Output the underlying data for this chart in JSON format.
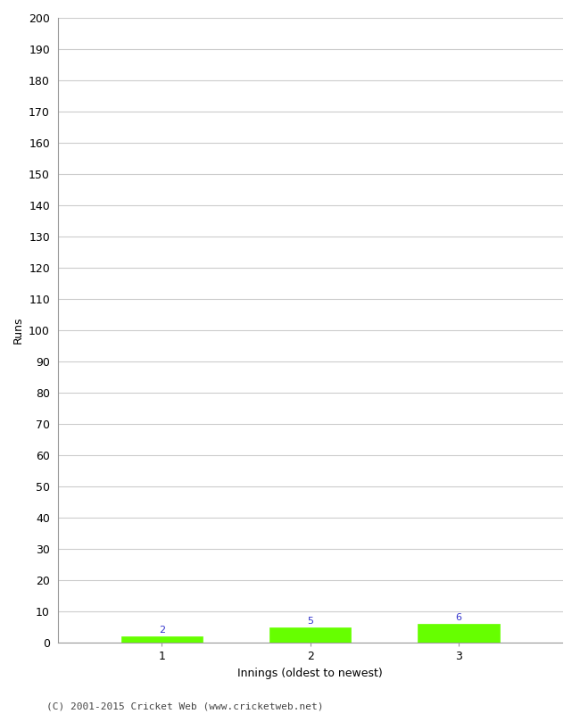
{
  "categories": [
    1,
    2,
    3
  ],
  "values": [
    2,
    5,
    6
  ],
  "bar_color": "#66ff00",
  "bar_edge_color": "#66ff00",
  "label_color": "#3333cc",
  "ylabel": "Runs",
  "xlabel": "Innings (oldest to newest)",
  "ylim": [
    0,
    200
  ],
  "ytick_min": 0,
  "ytick_max": 200,
  "ytick_step": 10,
  "background_color": "#ffffff",
  "grid_color": "#cccccc",
  "footer_text": "(C) 2001-2015 Cricket Web (www.cricketweb.net)",
  "label_fontsize": 8,
  "axis_label_fontsize": 9,
  "tick_fontsize": 9,
  "footer_fontsize": 8,
  "bar_width": 0.55
}
